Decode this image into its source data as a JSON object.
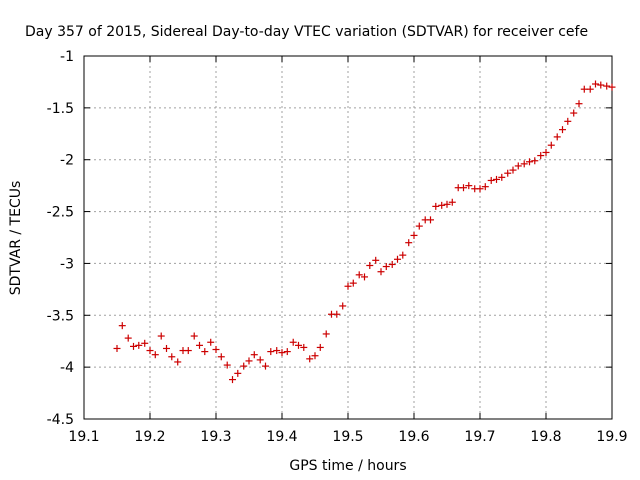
{
  "chart_data": {
    "type": "scatter",
    "title": "Day 357 of 2015, Sidereal Day-to-day VTEC variation (SDTVAR) for receiver cefe",
    "xlabel": "GPS time / hours",
    "ylabel": "SDTVAR / TECUs",
    "xlim": [
      19.1,
      19.9
    ],
    "ylim": [
      -4.5,
      -1
    ],
    "xticks": [
      "19.1",
      "19.2",
      "19.3",
      "19.4",
      "19.5",
      "19.6",
      "19.7",
      "19.8",
      "19.9"
    ],
    "yticks": [
      "-1",
      "-1.5",
      "-2",
      "-2.5",
      "-3",
      "-3.5",
      "-4",
      "-4.5"
    ],
    "grid": true,
    "marker": "+",
    "color": "#cc0000",
    "series": [
      {
        "name": "SDTVAR",
        "x": [
          19.15,
          19.158,
          19.167,
          19.175,
          19.183,
          19.192,
          19.2,
          19.208,
          19.217,
          19.225,
          19.233,
          19.242,
          19.25,
          19.258,
          19.267,
          19.275,
          19.283,
          19.292,
          19.3,
          19.308,
          19.317,
          19.325,
          19.333,
          19.342,
          19.35,
          19.358,
          19.367,
          19.375,
          19.383,
          19.392,
          19.4,
          19.408,
          19.417,
          19.425,
          19.433,
          19.442,
          19.45,
          19.458,
          19.467,
          19.475,
          19.483,
          19.492,
          19.5,
          19.508,
          19.517,
          19.525,
          19.533,
          19.542,
          19.55,
          19.558,
          19.567,
          19.575,
          19.583,
          19.592,
          19.6,
          19.608,
          19.617,
          19.625,
          19.633,
          19.642,
          19.65,
          19.658,
          19.667,
          19.675,
          19.683,
          19.692,
          19.7,
          19.708,
          19.717,
          19.725,
          19.733,
          19.742,
          19.75,
          19.758,
          19.767,
          19.775,
          19.783,
          19.792,
          19.8,
          19.808,
          19.817,
          19.825,
          19.833,
          19.842,
          19.85,
          19.858,
          19.867,
          19.875,
          19.883,
          19.892,
          19.9
        ],
        "y": [
          -3.82,
          -3.6,
          -3.72,
          -3.8,
          -3.79,
          -3.77,
          -3.84,
          -3.88,
          -3.7,
          -3.82,
          -3.9,
          -3.95,
          -3.84,
          -3.84,
          -3.7,
          -3.79,
          -3.85,
          -3.76,
          -3.83,
          -3.9,
          -3.98,
          -4.12,
          -4.06,
          -3.99,
          -3.94,
          -3.88,
          -3.93,
          -3.99,
          -3.85,
          -3.84,
          -3.86,
          -3.85,
          -3.76,
          -3.79,
          -3.81,
          -3.92,
          -3.89,
          -3.81,
          -3.68,
          -3.49,
          -3.49,
          -3.41,
          -3.22,
          -3.19,
          -3.11,
          -3.13,
          -3.02,
          -2.97,
          -3.08,
          -3.03,
          -3.01,
          -2.96,
          -2.92,
          -2.8,
          -2.73,
          -2.64,
          -2.58,
          -2.58,
          -2.45,
          -2.44,
          -2.43,
          -2.41,
          -2.27,
          -2.27,
          -2.25,
          -2.28,
          -2.28,
          -2.26,
          -2.2,
          -2.19,
          -2.17,
          -2.13,
          -2.1,
          -2.06,
          -2.04,
          -2.02,
          -2.01,
          -1.96,
          -1.93,
          -1.86,
          -1.78,
          -1.71,
          -1.63,
          -1.55,
          -1.46,
          -1.32,
          -1.32,
          -1.27,
          -1.28,
          -1.29,
          -1.3
        ]
      }
    ]
  }
}
